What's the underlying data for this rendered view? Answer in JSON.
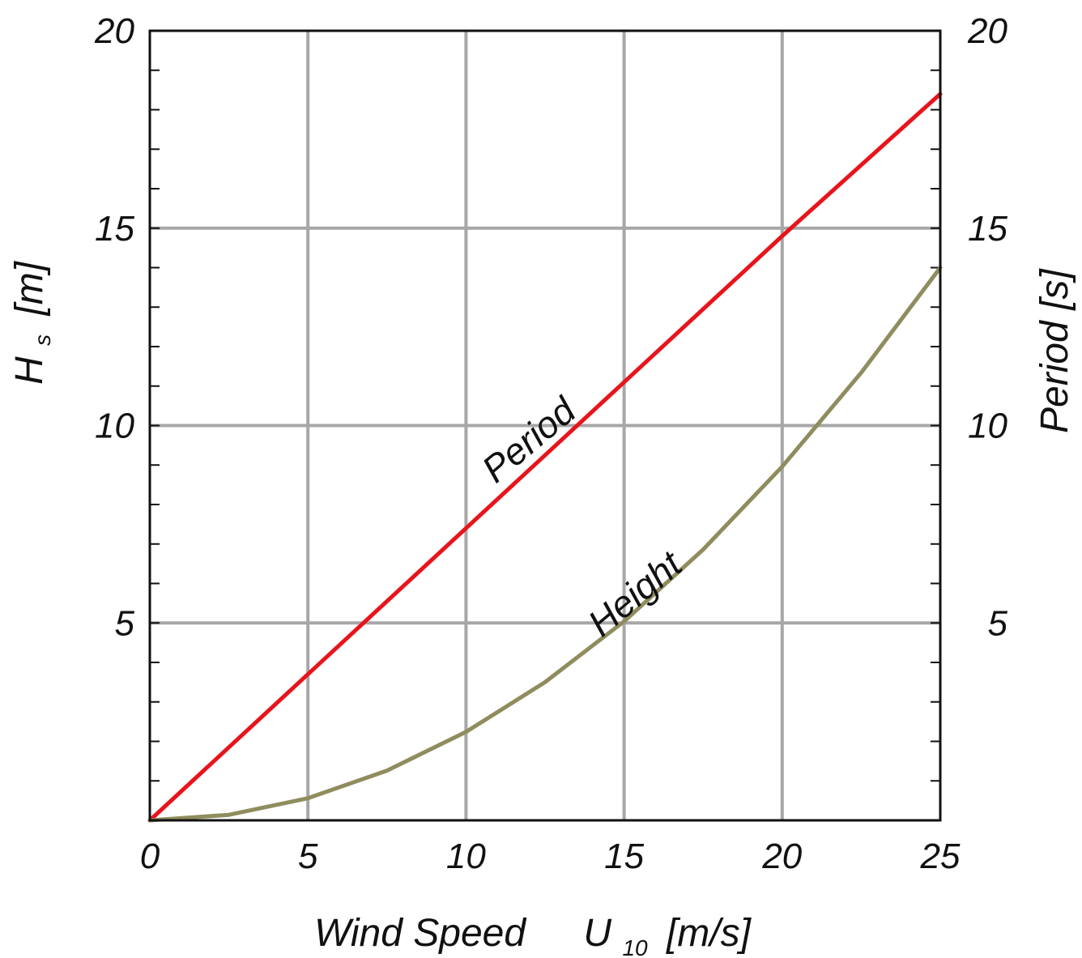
{
  "chart_data": {
    "type": "line",
    "xlabel": "Wind Speed",
    "xlabel_symbol": "U",
    "xlabel_subscript": "10",
    "xlabel_unit": "[m/s]",
    "ylabel_left": "H",
    "ylabel_left_subscript": "s",
    "ylabel_left_unit": "[m]",
    "ylabel_right": "Period [s]",
    "xlim": [
      0,
      25
    ],
    "ylim_left": [
      0,
      20
    ],
    "ylim_right": [
      0,
      20
    ],
    "x_ticks": [
      "0",
      "5",
      "10",
      "15",
      "20",
      "25"
    ],
    "y_left_ticks": [
      "5",
      "10",
      "15",
      "20"
    ],
    "y_right_ticks": [
      "5",
      "10",
      "15",
      "20"
    ],
    "grid": true,
    "series": [
      {
        "name": "Period",
        "color": "#e8141c",
        "axis": "right",
        "x": [
          0,
          5,
          10,
          15,
          20,
          25
        ],
        "y": [
          0,
          3.7,
          7.4,
          11.1,
          14.8,
          18.4
        ]
      },
      {
        "name": "Height",
        "color": "#8f8c5e",
        "axis": "left",
        "x": [
          0,
          2.5,
          5,
          7.5,
          10,
          12.5,
          15,
          17.5,
          20,
          22.5,
          25
        ],
        "y": [
          0,
          0.14,
          0.56,
          1.26,
          2.24,
          3.5,
          5.04,
          6.86,
          8.96,
          11.34,
          14.0
        ]
      }
    ]
  }
}
